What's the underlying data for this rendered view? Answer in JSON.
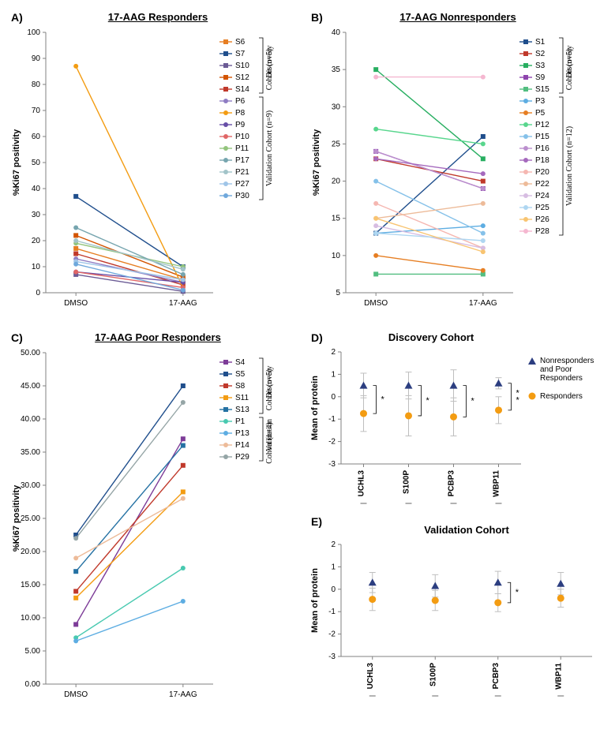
{
  "panelA": {
    "label": "A)",
    "title": "17-AAG Responders",
    "ylabel": "%Ki67 positivity",
    "xticks": [
      "DMSO",
      "17-AAG"
    ],
    "ylim": [
      0,
      100
    ],
    "ytick_step": 10,
    "brackets": [
      {
        "label": "Discovery\nCohort (n=5)",
        "start": 0,
        "end": 4
      },
      {
        "label": "Validation Cohort (n=9)",
        "start": 5,
        "end": 13
      }
    ],
    "series": [
      {
        "name": "S6",
        "color": "#e67e22",
        "marker": "square",
        "y": [
          17,
          5
        ]
      },
      {
        "name": "S7",
        "color": "#1f4e8c",
        "marker": "square",
        "y": [
          37,
          10
        ]
      },
      {
        "name": "S10",
        "color": "#6b5b95",
        "marker": "square",
        "y": [
          7,
          0.5
        ]
      },
      {
        "name": "S12",
        "color": "#d35400",
        "marker": "square",
        "y": [
          22,
          6
        ]
      },
      {
        "name": "S14",
        "color": "#c0392b",
        "marker": "square",
        "y": [
          15,
          3
        ]
      },
      {
        "name": "P6",
        "color": "#8e7cc3",
        "marker": "circle",
        "y": [
          13,
          4
        ]
      },
      {
        "name": "P8",
        "color": "#f39c12",
        "marker": "circle",
        "y": [
          87,
          2
        ]
      },
      {
        "name": "P9",
        "color": "#674ea7",
        "marker": "circle",
        "y": [
          8,
          4
        ]
      },
      {
        "name": "P10",
        "color": "#e06666",
        "marker": "circle",
        "y": [
          8,
          2
        ]
      },
      {
        "name": "P11",
        "color": "#93c47d",
        "marker": "circle",
        "y": [
          19,
          10
        ]
      },
      {
        "name": "P17",
        "color": "#76a5af",
        "marker": "circle",
        "y": [
          25,
          7
        ]
      },
      {
        "name": "P21",
        "color": "#a2c4c9",
        "marker": "circle",
        "y": [
          20,
          9
        ]
      },
      {
        "name": "P27",
        "color": "#9fc5e8",
        "marker": "circle",
        "y": [
          12,
          5
        ]
      },
      {
        "name": "P30",
        "color": "#6fa8dc",
        "marker": "circle",
        "y": [
          11,
          1
        ]
      }
    ]
  },
  "panelB": {
    "label": "B)",
    "title": "17-AAG Nonresponders",
    "ylabel": "%Ki67 positivity",
    "xticks": [
      "DMSO",
      "17-AAG"
    ],
    "ylim": [
      5,
      40
    ],
    "ytick_step": 5,
    "brackets": [
      {
        "label": "Discovery\nCohort (n=5)",
        "start": 0,
        "end": 4
      },
      {
        "label": "Validation Cohort (n=12)",
        "start": 5,
        "end": 16
      }
    ],
    "series": [
      {
        "name": "S1",
        "color": "#1f4e8c",
        "marker": "square",
        "y": [
          13,
          26
        ]
      },
      {
        "name": "S2",
        "color": "#c0392b",
        "marker": "square",
        "y": [
          23,
          20
        ]
      },
      {
        "name": "S3",
        "color": "#27ae60",
        "marker": "square",
        "y": [
          35,
          23
        ]
      },
      {
        "name": "S9",
        "color": "#8e44ad",
        "marker": "square",
        "y": [
          24,
          19
        ]
      },
      {
        "name": "S15",
        "color": "#52be80",
        "marker": "square",
        "y": [
          7.5,
          7.5
        ]
      },
      {
        "name": "P3",
        "color": "#5dade2",
        "marker": "circle",
        "y": [
          13,
          14
        ]
      },
      {
        "name": "P5",
        "color": "#e67e22",
        "marker": "circle",
        "y": [
          10,
          8
        ]
      },
      {
        "name": "P12",
        "color": "#58d68d",
        "marker": "circle",
        "y": [
          27,
          25
        ]
      },
      {
        "name": "P15",
        "color": "#85c1e9",
        "marker": "circle",
        "y": [
          20,
          13
        ]
      },
      {
        "name": "P16",
        "color": "#bb8fce",
        "marker": "circle",
        "y": [
          24,
          19
        ]
      },
      {
        "name": "P18",
        "color": "#a569bd",
        "marker": "circle",
        "y": [
          23,
          21
        ]
      },
      {
        "name": "P20",
        "color": "#f5b7b1",
        "marker": "circle",
        "y": [
          17,
          11
        ]
      },
      {
        "name": "P22",
        "color": "#edbb99",
        "marker": "circle",
        "y": [
          15,
          17
        ]
      },
      {
        "name": "P24",
        "color": "#d7bde2",
        "marker": "circle",
        "y": [
          14,
          11
        ]
      },
      {
        "name": "P25",
        "color": "#aed6f1",
        "marker": "circle",
        "y": [
          13,
          12
        ]
      },
      {
        "name": "P26",
        "color": "#f8c471",
        "marker": "circle",
        "y": [
          15,
          10.5
        ]
      },
      {
        "name": "P28",
        "color": "#f5b7d0",
        "marker": "circle",
        "y": [
          34,
          34
        ]
      }
    ]
  },
  "panelC": {
    "label": "C)",
    "title": "17-AAG Poor Responders",
    "ylabel": "%Ki67 positivity",
    "xticks": [
      "DMSO",
      "17-AAG"
    ],
    "ylim": [
      0,
      50
    ],
    "ytick_step": 5,
    "decimals": 2,
    "brackets": [
      {
        "label": "Discovery\nCohort (n=5)",
        "start": 0,
        "end": 4
      },
      {
        "label": "Validation\nCohort (n=4)",
        "start": 5,
        "end": 8
      }
    ],
    "series": [
      {
        "name": "S4",
        "color": "#7d3c98",
        "marker": "square",
        "y": [
          9,
          37
        ]
      },
      {
        "name": "S5",
        "color": "#1f4e8c",
        "marker": "square",
        "y": [
          22.5,
          45
        ]
      },
      {
        "name": "S8",
        "color": "#c0392b",
        "marker": "square",
        "y": [
          14,
          33
        ]
      },
      {
        "name": "S11",
        "color": "#f39c12",
        "marker": "square",
        "y": [
          13,
          29
        ]
      },
      {
        "name": "S13",
        "color": "#2471a3",
        "marker": "square",
        "y": [
          17,
          36
        ]
      },
      {
        "name": "P1",
        "color": "#48c9b0",
        "marker": "circle",
        "y": [
          7,
          17.5
        ]
      },
      {
        "name": "P13",
        "color": "#5dade2",
        "marker": "circle",
        "y": [
          6.5,
          12.5
        ]
      },
      {
        "name": "P14",
        "color": "#edbb99",
        "marker": "circle",
        "y": [
          19,
          28
        ]
      },
      {
        "name": "P29",
        "color": "#95a5a6",
        "marker": "circle",
        "y": [
          22,
          42.5
        ]
      }
    ]
  },
  "panelD": {
    "label": "D)",
    "title": "Discovery Cohort",
    "ylabel": "Mean of protein",
    "xcats": [
      "UCHL3",
      "S100P",
      "PCBP3",
      "WBP11"
    ],
    "ylim": [
      -3,
      2
    ],
    "ytick_step": 1,
    "legend": [
      {
        "name": "Nonresponders and Poor Responders",
        "color": "#2c3e80",
        "marker": "triangle"
      },
      {
        "name": "Responders",
        "color": "#f39c12",
        "marker": "circle"
      }
    ],
    "groups": [
      {
        "nr": {
          "mean": 0.5,
          "err": 0.55
        },
        "r": {
          "mean": -0.75,
          "err": 0.8
        },
        "sig": "*"
      },
      {
        "nr": {
          "mean": 0.5,
          "err": 0.6
        },
        "r": {
          "mean": -0.85,
          "err": 0.9
        },
        "sig": "*"
      },
      {
        "nr": {
          "mean": 0.5,
          "err": 0.7
        },
        "r": {
          "mean": -0.9,
          "err": 0.85
        },
        "sig": "*"
      },
      {
        "nr": {
          "mean": 0.6,
          "err": 0.25
        },
        "r": {
          "mean": -0.6,
          "err": 0.6
        },
        "sig": "**"
      }
    ]
  },
  "panelE": {
    "label": "E)",
    "title": "Validation Cohort",
    "ylabel": "Mean of protein",
    "xcats": [
      "UCHL3",
      "S100P",
      "PCBP3",
      "WBP11"
    ],
    "ylim": [
      -3,
      2
    ],
    "ytick_step": 1,
    "groups": [
      {
        "nr": {
          "mean": 0.3,
          "err": 0.45
        },
        "r": {
          "mean": -0.45,
          "err": 0.5
        },
        "sig": ""
      },
      {
        "nr": {
          "mean": 0.15,
          "err": 0.5
        },
        "r": {
          "mean": -0.5,
          "err": 0.45
        },
        "sig": ""
      },
      {
        "nr": {
          "mean": 0.3,
          "err": 0.5
        },
        "r": {
          "mean": -0.6,
          "err": 0.4
        },
        "sig": "*"
      },
      {
        "nr": {
          "mean": 0.25,
          "err": 0.5
        },
        "r": {
          "mean": -0.4,
          "err": 0.4
        },
        "sig": ""
      }
    ]
  },
  "colors": {
    "axis": "#808080",
    "err": "#bfbfbf",
    "sigbracket": "#000000"
  }
}
